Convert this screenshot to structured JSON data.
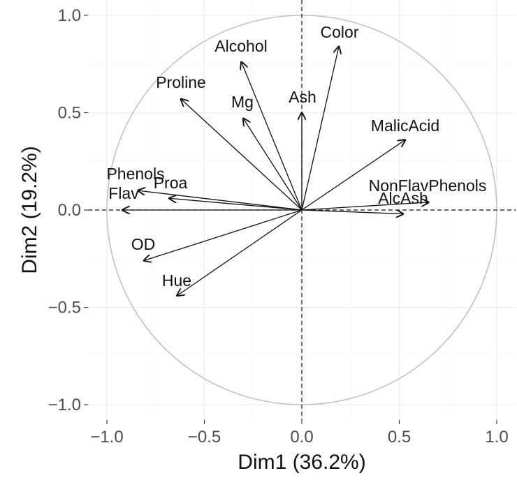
{
  "chart_data": {
    "type": "scatter",
    "subtype": "pca-correlation-circle",
    "title": "",
    "xlabel": "Dim1 (36.2%)",
    "ylabel": "Dim2 (19.2%)",
    "xlim": [
      -1.0,
      1.0
    ],
    "ylim": [
      -1.0,
      1.0
    ],
    "xticks": [
      -1.0,
      -0.5,
      0.0,
      0.5,
      1.0
    ],
    "yticks": [
      -1.0,
      -0.5,
      0.0,
      0.5,
      1.0
    ],
    "xtick_labels": [
      "−1.0",
      "−0.5",
      "0.0",
      "0.5",
      "1.0"
    ],
    "ytick_labels": [
      "−1.0",
      "−0.5",
      "0.0",
      "0.5",
      "1.0"
    ],
    "grid": true,
    "unit_circle": true,
    "zero_lines": "dashed",
    "variables": [
      {
        "name": "Alcohol",
        "x": -0.31,
        "y": 0.76
      },
      {
        "name": "Color",
        "x": 0.19,
        "y": 0.84
      },
      {
        "name": "Proline",
        "x": -0.62,
        "y": 0.57
      },
      {
        "name": "Mg",
        "x": -0.3,
        "y": 0.47
      },
      {
        "name": "Ash",
        "x": 0.0,
        "y": 0.5
      },
      {
        "name": "MalicAcid",
        "x": 0.53,
        "y": 0.36
      },
      {
        "name": "Phenols",
        "x": -0.84,
        "y": 0.1
      },
      {
        "name": "Proa",
        "x": -0.68,
        "y": 0.06
      },
      {
        "name": "Flav",
        "x": -0.92,
        "y": 0.0
      },
      {
        "name": "NonFlavPhenols",
        "x": 0.65,
        "y": 0.04
      },
      {
        "name": "AlcAsh",
        "x": 0.52,
        "y": -0.02
      },
      {
        "name": "OD",
        "x": -0.81,
        "y": -0.26
      },
      {
        "name": "Hue",
        "x": -0.64,
        "y": -0.44
      }
    ]
  }
}
